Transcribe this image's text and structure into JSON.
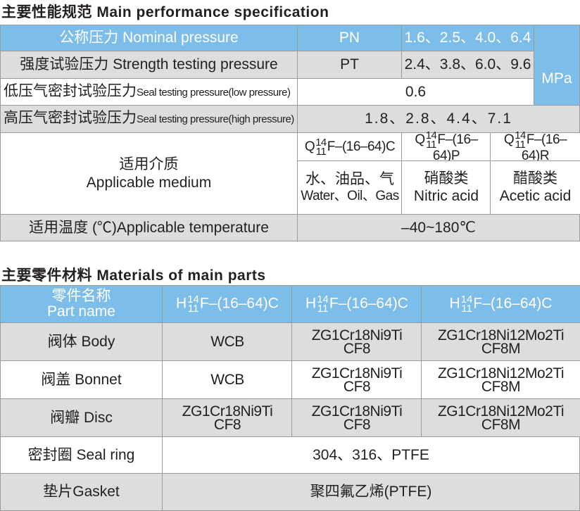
{
  "spec": {
    "title": "主要性能规范 Main performance specification",
    "nominal": {
      "label_cn": "公称压力",
      "label_en": "Nominal pressure",
      "code": "PN",
      "values": "1.6、2.5、4.0、6.4"
    },
    "strength": {
      "label_cn": "强度试验压力",
      "label_en": "Strength testing pressure",
      "code": "PT",
      "values": "2.4、3.8、6.0、9.6"
    },
    "unit": "MPa",
    "seal_low": {
      "label_cn": "低压气密封试验压力",
      "label_en": "Seal testing pressure(low pressure)",
      "value": "0.6"
    },
    "seal_high": {
      "label_cn": "高压气密封试验压力",
      "label_en": "Seal testing pressure(high pressure)",
      "value": "1.8、2.8、4.4、7.1"
    },
    "medium": {
      "label_cn": "适用介质",
      "label_en": "Applicable medium",
      "models": [
        {
          "prefix": "Q",
          "sup": "14",
          "sub": "11",
          "suffix": "F–(16–64)C"
        },
        {
          "prefix": "Q",
          "sup": "14",
          "sub": "11",
          "suffix": "F–(16–64)P"
        },
        {
          "prefix": "Q",
          "sup": "14",
          "sub": "11",
          "suffix": "F–(16–64)R"
        }
      ],
      "media": [
        {
          "cn": "水、油品、气",
          "en": "Water、Oil、Gas"
        },
        {
          "cn": "硝酸类",
          "en": "Nitric acid"
        },
        {
          "cn": "醋酸类",
          "en": "Acetic acid"
        }
      ]
    },
    "temperature": {
      "label": "适用温度 (℃)Applicable temperature",
      "value": "–40~180℃"
    }
  },
  "materials": {
    "title": "主要零件材料 Materials of main parts",
    "header": {
      "cn": "零件名称",
      "en": "Part name",
      "models": [
        {
          "prefix": "H",
          "sup": "14",
          "sub": "11",
          "suffix": "F–(16–64)C"
        },
        {
          "prefix": "H",
          "sup": "14",
          "sub": "11",
          "suffix": "F–(16–64)C"
        },
        {
          "prefix": "H",
          "sup": "14",
          "sub": "11",
          "suffix": "F–(16–64)C"
        }
      ]
    },
    "rows": [
      {
        "part": "阀体 Body",
        "c1": "WCB",
        "c2a": "ZG1Cr18Ni9Ti",
        "c2b": "CF8",
        "c3a": "ZG1Cr18Ni12Mo2Ti",
        "c3b": "CF8M"
      },
      {
        "part": "阀盖 Bonnet",
        "c1": "WCB",
        "c2a": "ZG1Cr18Ni9Ti",
        "c2b": "CF8",
        "c3a": "ZG1Cr18Ni12Mo2Ti",
        "c3b": "CF8M"
      },
      {
        "part": "阀瓣 Disc",
        "c1a": "ZG1Cr18Ni9Ti",
        "c1b": "CF8",
        "c2a": "ZG1Cr18Ni9Ti",
        "c2b": "CF8",
        "c3a": "ZG1Cr18Ni12Mo2Ti",
        "c3b": "CF8M"
      },
      {
        "part": "密封圈 Seal ring",
        "value": "304、316、PTFE"
      },
      {
        "part": "垫片Gasket",
        "value": "聚四氟乙烯(PTFE)"
      }
    ]
  }
}
